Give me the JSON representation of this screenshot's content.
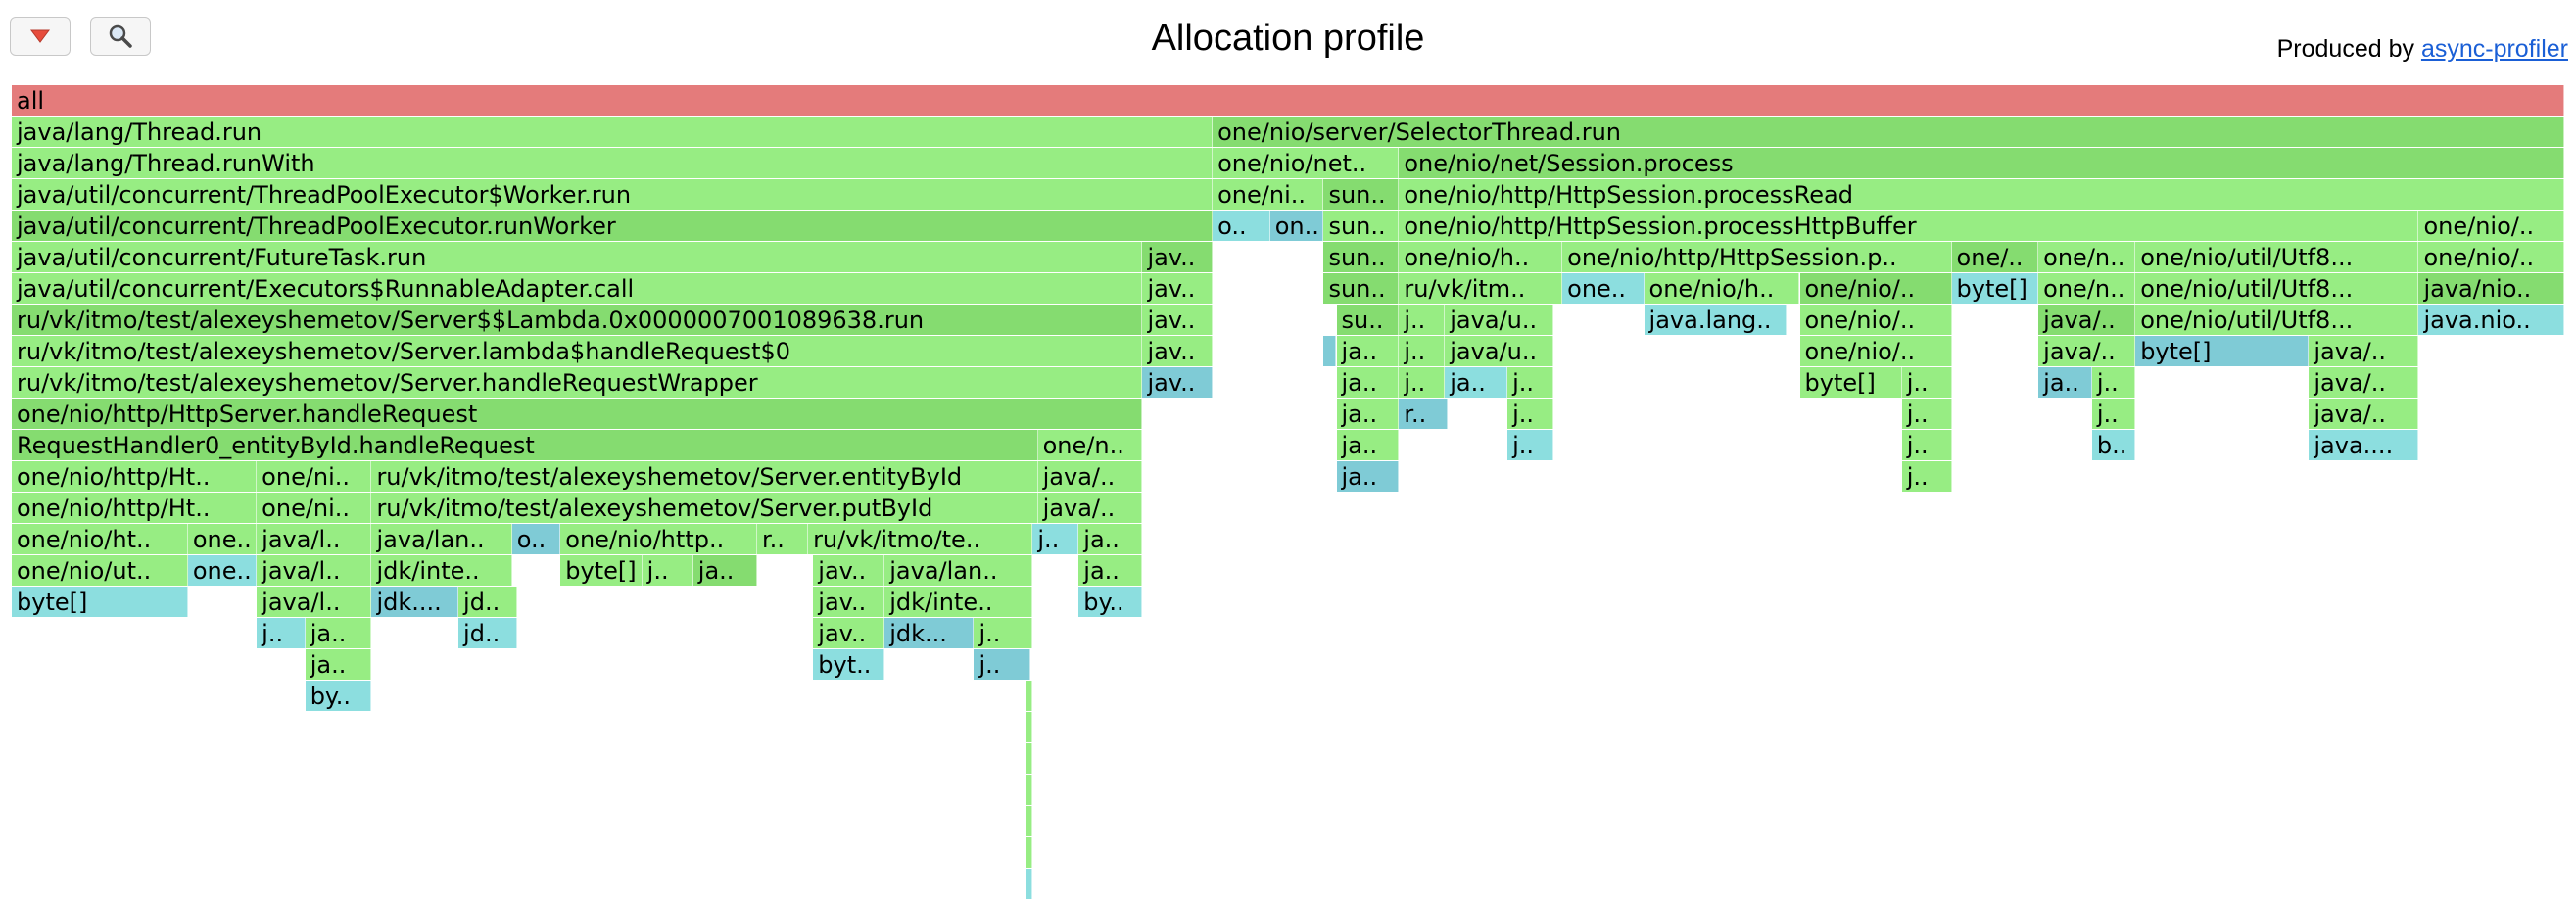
{
  "header": {
    "title": "Allocation profile",
    "produced_prefix": "Produced by",
    "produced_link": "async-profiler",
    "reverse_icon": "triangle-down-icon",
    "search_icon": "magnifier-icon"
  },
  "colors": {
    "root": "#e47b7b",
    "green": "#97ed83",
    "green_alt": "#85dc70",
    "cyan": "#8cdedf",
    "cyan_alt": "#7fcbd6"
  },
  "frames": [
    [
      0,
      0,
      100,
      "all",
      "root"
    ],
    [
      1,
      0,
      47.05,
      "java/lang/Thread.run",
      "green"
    ],
    [
      1,
      47.05,
      52.95,
      "one/nio/server/SelectorThread.run",
      "green_alt"
    ],
    [
      2,
      0,
      47.05,
      "java/lang/Thread.runWith",
      "green"
    ],
    [
      2,
      47.05,
      7.3,
      "one/nio/net..",
      "green"
    ],
    [
      2,
      54.35,
      45.65,
      "one/nio/net/Session.process",
      "green_alt"
    ],
    [
      3,
      0,
      47.05,
      "java/util/concurrent/ThreadPoolExecutor$Worker.run",
      "green"
    ],
    [
      3,
      47.05,
      4.35,
      "one/ni..",
      "green"
    ],
    [
      3,
      51.4,
      2.95,
      "sun..",
      "green_alt"
    ],
    [
      3,
      54.35,
      45.65,
      "one/nio/http/HttpSession.processRead",
      "green"
    ],
    [
      4,
      0,
      47.05,
      "java/util/concurrent/ThreadPoolExecutor.runWorker",
      "green_alt"
    ],
    [
      4,
      47.05,
      2.25,
      "o..",
      "cyan"
    ],
    [
      4,
      49.3,
      2.1,
      "on..",
      "cyan_alt"
    ],
    [
      4,
      51.4,
      2.95,
      "sun..",
      "green"
    ],
    [
      4,
      54.35,
      39.95,
      "one/nio/http/HttpSession.processHttpBuffer",
      "green"
    ],
    [
      4,
      94.3,
      5.7,
      "one/nio/..",
      "green"
    ],
    [
      5,
      0,
      44.3,
      "java/util/concurrent/FutureTask.run",
      "green"
    ],
    [
      5,
      44.3,
      2.75,
      "jav..",
      "green_alt"
    ],
    [
      5,
      51.4,
      2.95,
      "sun..",
      "green_alt"
    ],
    [
      5,
      54.35,
      6.4,
      "one/nio/h..",
      "green"
    ],
    [
      5,
      60.75,
      15.25,
      "one/nio/http/HttpSession.p..",
      "green"
    ],
    [
      5,
      76,
      3.4,
      "one/..",
      "green_alt"
    ],
    [
      5,
      79.4,
      3.8,
      "one/n..",
      "green"
    ],
    [
      5,
      83.2,
      11.1,
      "one/nio/util/Utf8...",
      "green"
    ],
    [
      5,
      94.3,
      5.7,
      "one/nio/..",
      "green"
    ],
    [
      6,
      0,
      44.3,
      "java/util/concurrent/Executors$RunnableAdapter.call",
      "green"
    ],
    [
      6,
      44.3,
      2.75,
      "jav..",
      "green"
    ],
    [
      6,
      51.4,
      2.95,
      "sun..",
      "green_alt"
    ],
    [
      6,
      54.35,
      6.4,
      "ru/vk/itm..",
      "green"
    ],
    [
      6,
      60.75,
      3.2,
      "one..",
      "cyan"
    ],
    [
      6,
      63.95,
      6.1,
      "one/nio/h..",
      "green"
    ],
    [
      6,
      70.05,
      5.95,
      "one/nio/..",
      "green_alt"
    ],
    [
      6,
      76,
      3.4,
      "byte[]",
      "cyan"
    ],
    [
      6,
      79.4,
      3.8,
      "one/n..",
      "green"
    ],
    [
      6,
      83.2,
      11.1,
      "one/nio/util/Utf8...",
      "green"
    ],
    [
      6,
      94.3,
      5.7,
      "java/nio..",
      "green_alt"
    ],
    [
      7,
      0,
      44.3,
      "ru/vk/itmo/test/alexeyshemetov/Server$$Lambda.0x0000007001089638.run",
      "green_alt"
    ],
    [
      7,
      44.3,
      2.75,
      "jav..",
      "green"
    ],
    [
      7,
      51.9,
      2.45,
      "su..",
      "green_alt"
    ],
    [
      7,
      54.35,
      1.8,
      "j..",
      "green"
    ],
    [
      7,
      56.15,
      4.25,
      "java/u..",
      "green"
    ],
    [
      7,
      63.95,
      5.6,
      "java.lang..",
      "cyan"
    ],
    [
      7,
      70.05,
      5.95,
      "one/nio/..",
      "green"
    ],
    [
      7,
      79.4,
      3.8,
      "java/..",
      "green_alt"
    ],
    [
      7,
      83.2,
      11.1,
      "one/nio/util/Utf8...",
      "green"
    ],
    [
      7,
      94.3,
      5.7,
      "java.nio..",
      "cyan"
    ],
    [
      8,
      0,
      44.3,
      "ru/vk/itmo/test/alexeyshemetov/Server.lambda$handleRequest$0",
      "green"
    ],
    [
      8,
      44.3,
      2.75,
      "jav..",
      "green"
    ],
    [
      8,
      51.4,
      0.5,
      "",
      "cyan_alt"
    ],
    [
      8,
      51.9,
      2.45,
      "ja..",
      "green"
    ],
    [
      8,
      54.35,
      1.8,
      "j..",
      "green"
    ],
    [
      8,
      56.15,
      4.25,
      "java/u..",
      "green"
    ],
    [
      8,
      70.05,
      5.95,
      "one/nio/..",
      "green"
    ],
    [
      8,
      79.4,
      3.8,
      "java/..",
      "green"
    ],
    [
      8,
      83.2,
      6.8,
      "byte[]",
      "cyan_alt"
    ],
    [
      8,
      90,
      4.3,
      "java/..",
      "green"
    ],
    [
      9,
      0,
      44.3,
      "ru/vk/itmo/test/alexeyshemetov/Server.handleRequestWrapper",
      "green"
    ],
    [
      9,
      44.3,
      2.75,
      "jav..",
      "cyan_alt"
    ],
    [
      9,
      51.9,
      2.45,
      "ja..",
      "green"
    ],
    [
      9,
      54.35,
      1.8,
      "j..",
      "green"
    ],
    [
      9,
      56.15,
      2.45,
      "ja..",
      "cyan"
    ],
    [
      9,
      58.6,
      1.8,
      "j..",
      "green"
    ],
    [
      9,
      70.05,
      4.0,
      "byte[]",
      "green"
    ],
    [
      9,
      74.05,
      1.95,
      "j..",
      "green"
    ],
    [
      9,
      79.4,
      2.1,
      "ja..",
      "cyan_alt"
    ],
    [
      9,
      81.5,
      1.7,
      "j..",
      "green"
    ],
    [
      9,
      90,
      4.3,
      "java/..",
      "green"
    ],
    [
      10,
      0,
      44.3,
      "one/nio/http/HttpServer.handleRequest",
      "green_alt"
    ],
    [
      10,
      51.9,
      2.45,
      "ja..",
      "green"
    ],
    [
      10,
      54.35,
      1.9,
      "r..",
      "cyan_alt"
    ],
    [
      10,
      58.6,
      1.8,
      "j..",
      "green"
    ],
    [
      10,
      74.05,
      1.95,
      "j..",
      "green"
    ],
    [
      10,
      81.5,
      1.7,
      "j..",
      "green"
    ],
    [
      10,
      90,
      4.3,
      "java/..",
      "green"
    ],
    [
      11,
      0,
      40.2,
      "RequestHandler0_entityById.handleRequest",
      "green_alt"
    ],
    [
      11,
      40.2,
      4.1,
      "one/n..",
      "green"
    ],
    [
      11,
      51.9,
      2.45,
      "ja..",
      "green"
    ],
    [
      11,
      58.6,
      1.8,
      "j..",
      "cyan"
    ],
    [
      11,
      74.05,
      1.95,
      "j..",
      "green"
    ],
    [
      11,
      81.5,
      1.7,
      "b..",
      "cyan"
    ],
    [
      11,
      90,
      4.3,
      "java....",
      "cyan"
    ],
    [
      12,
      0,
      9.6,
      "one/nio/http/Ht..",
      "green"
    ],
    [
      12,
      9.6,
      4.5,
      "one/ni..",
      "green"
    ],
    [
      12,
      14.1,
      26.1,
      "ru/vk/itmo/test/alexeyshemetov/Server.entityById",
      "green"
    ],
    [
      12,
      40.2,
      4.1,
      "java/..",
      "green"
    ],
    [
      12,
      51.9,
      2.45,
      "ja..",
      "cyan_alt"
    ],
    [
      12,
      74.05,
      1.95,
      "j..",
      "green"
    ],
    [
      13,
      0,
      9.6,
      "one/nio/http/Ht..",
      "green"
    ],
    [
      13,
      9.6,
      4.5,
      "one/ni..",
      "green"
    ],
    [
      13,
      14.1,
      26.1,
      "ru/vk/itmo/test/alexeyshemetov/Server.putById",
      "green"
    ],
    [
      13,
      40.2,
      4.1,
      "java/..",
      "green"
    ],
    [
      14,
      0,
      6.9,
      "one/nio/ht..",
      "green"
    ],
    [
      14,
      6.9,
      2.7,
      "one..",
      "green"
    ],
    [
      14,
      9.6,
      4.5,
      "java/l..",
      "green"
    ],
    [
      14,
      14.1,
      5.5,
      "java/lan..",
      "green"
    ],
    [
      14,
      19.6,
      1.9,
      "o..",
      "cyan_alt"
    ],
    [
      14,
      21.5,
      7.7,
      "one/nio/http..",
      "green"
    ],
    [
      14,
      29.2,
      2.0,
      "r..",
      "green"
    ],
    [
      14,
      31.2,
      8.8,
      "ru/vk/itmo/te..",
      "green"
    ],
    [
      14,
      40,
      1.8,
      "j..",
      "cyan"
    ],
    [
      14,
      41.8,
      2.5,
      "ja..",
      "green"
    ],
    [
      15,
      0,
      6.9,
      "one/nio/ut..",
      "green"
    ],
    [
      15,
      6.9,
      2.7,
      "one..",
      "cyan"
    ],
    [
      15,
      9.6,
      4.5,
      "java/l..",
      "green"
    ],
    [
      15,
      14.1,
      5.5,
      "jdk/inte..",
      "green"
    ],
    [
      15,
      21.5,
      3.2,
      "byte[]",
      "green"
    ],
    [
      15,
      24.7,
      2.0,
      "j..",
      "green"
    ],
    [
      15,
      26.7,
      2.5,
      "ja..",
      "green_alt"
    ],
    [
      15,
      31.4,
      2.8,
      "jav..",
      "green"
    ],
    [
      15,
      34.2,
      5.8,
      "java/lan..",
      "green"
    ],
    [
      15,
      41.8,
      2.5,
      "ja..",
      "green"
    ],
    [
      16,
      0,
      6.9,
      "byte[]",
      "cyan"
    ],
    [
      16,
      9.6,
      4.5,
      "java/l..",
      "green"
    ],
    [
      16,
      14.1,
      3.4,
      "jdk....",
      "cyan_alt"
    ],
    [
      16,
      17.5,
      2.3,
      "jd..",
      "green"
    ],
    [
      16,
      31.4,
      2.8,
      "jav..",
      "green"
    ],
    [
      16,
      34.2,
      5.8,
      "jdk/inte..",
      "green"
    ],
    [
      16,
      41.8,
      2.5,
      "by..",
      "cyan"
    ],
    [
      17,
      9.6,
      1.9,
      "j..",
      "cyan"
    ],
    [
      17,
      11.5,
      2.6,
      "ja..",
      "green"
    ],
    [
      17,
      17.5,
      2.3,
      "jd..",
      "cyan"
    ],
    [
      17,
      31.4,
      2.8,
      "jav..",
      "green"
    ],
    [
      17,
      34.2,
      3.5,
      "jdk...",
      "cyan_alt"
    ],
    [
      17,
      37.7,
      2.3,
      "j..",
      "green"
    ],
    [
      18,
      11.5,
      2.6,
      "ja..",
      "green"
    ],
    [
      18,
      31.4,
      2.8,
      "byt..",
      "cyan"
    ],
    [
      18,
      37.7,
      2.2,
      "j..",
      "cyan_alt"
    ],
    [
      19,
      11.5,
      2.6,
      "by..",
      "cyan"
    ],
    [
      19,
      39.7,
      0.3,
      "",
      "green"
    ],
    [
      20,
      39.7,
      0.3,
      "",
      "green"
    ],
    [
      21,
      39.7,
      0.3,
      "",
      "green"
    ],
    [
      22,
      39.7,
      0.3,
      "",
      "green"
    ],
    [
      23,
      39.7,
      0.3,
      "",
      "green"
    ],
    [
      24,
      39.7,
      0.3,
      "",
      "green"
    ],
    [
      25,
      39.7,
      0.3,
      "",
      "cyan"
    ]
  ]
}
